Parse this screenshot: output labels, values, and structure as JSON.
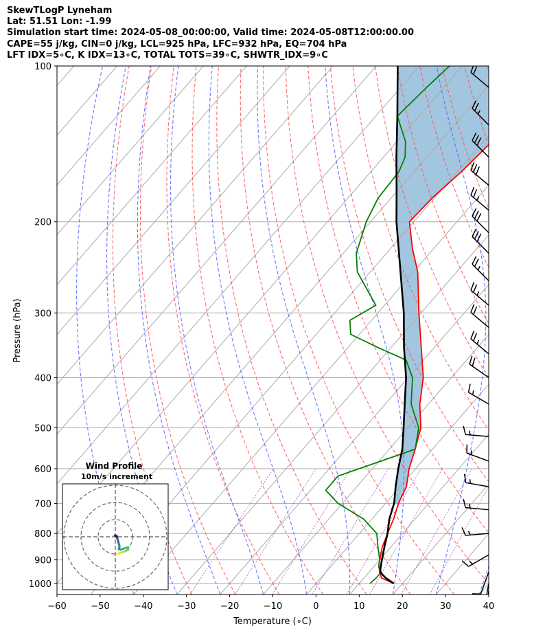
{
  "header": {
    "line1": "SkewTLogP Lyneham",
    "line2": "Lat: 51.51   Lon: -1.99",
    "line3": "Simulation start time: 2024-05-08_00:00:00, Valid time: 2024-05-08T12:00:00.00",
    "line4": "CAPE=55 j/kg, CIN=0 j/kg, LCL=925 hPa, LFC=932 hPa, EQ=704 hPa",
    "line5": "LFT IDX=5∘C, K IDX=13∘C, TOTAL TOTS=39∘C, SHWTR_IDX=9∘C"
  },
  "chart_data": [
    {
      "type": "line",
      "kind": "skew-t log-p",
      "xlabel": "Temperature (∘C)",
      "ylabel": "Pressure (hPa)",
      "xlim": [
        -60,
        40
      ],
      "ylim": [
        1050,
        100
      ],
      "y_scale": "log",
      "x_ticks": [
        "−60",
        "−50",
        "−40",
        "−30",
        "−20",
        "−10",
        "0",
        "10",
        "20",
        "30",
        "40"
      ],
      "y_ticks": [
        "100",
        "200",
        "300",
        "400",
        "500",
        "600",
        "700",
        "800",
        "900",
        "1000"
      ],
      "grid": true,
      "series": [
        {
          "role": "temperature",
          "color": "#ff0000",
          "points": [
            [
              1000,
              18
            ],
            [
              975,
              14
            ],
            [
              950,
              12.5
            ],
            [
              925,
              11
            ],
            [
              900,
              10
            ],
            [
              850,
              8
            ],
            [
              800,
              6.5
            ],
            [
              750,
              5
            ],
            [
              700,
              3
            ],
            [
              650,
              1.5
            ],
            [
              600,
              -1.5
            ],
            [
              550,
              -4
            ],
            [
              500,
              -7
            ],
            [
              450,
              -12
            ],
            [
              400,
              -16.5
            ],
            [
              350,
              -23
            ],
            [
              300,
              -30.5
            ],
            [
              250,
              -39
            ],
            [
              225,
              -45
            ],
            [
              200,
              -51
            ],
            [
              180,
              -50.5
            ],
            [
              160,
              -49
            ],
            [
              140,
              -48
            ],
            [
              125,
              -48
            ],
            [
              110,
              -47
            ],
            [
              100,
              -46
            ]
          ]
        },
        {
          "role": "dewpoint",
          "color": "#008000",
          "points": [
            [
              1000,
              12.5
            ],
            [
              975,
              12.8
            ],
            [
              950,
              12.8
            ],
            [
              925,
              11
            ],
            [
              900,
              10
            ],
            [
              850,
              7
            ],
            [
              800,
              4
            ],
            [
              750,
              -2
            ],
            [
              700,
              -11
            ],
            [
              660,
              -16.5
            ],
            [
              620,
              -16.5
            ],
            [
              550,
              -4
            ],
            [
              500,
              -7.5
            ],
            [
              450,
              -14
            ],
            [
              400,
              -19
            ],
            [
              370,
              -24
            ],
            [
              350,
              -33
            ],
            [
              330,
              -42
            ],
            [
              310,
              -45
            ],
            [
              290,
              -42
            ],
            [
              250,
              -53
            ],
            [
              230,
              -57
            ],
            [
              200,
              -61
            ],
            [
              180,
              -63
            ],
            [
              160,
              -63.5
            ],
            [
              150,
              -65
            ],
            [
              140,
              -68
            ],
            [
              125,
              -75
            ],
            [
              110,
              -74
            ],
            [
              100,
              -73
            ]
          ]
        },
        {
          "role": "parcel",
          "color": "#000000",
          "points": [
            [
              1000,
              18
            ],
            [
              975,
              15
            ],
            [
              950,
              12.5
            ],
            [
              925,
              11.5
            ],
            [
              900,
              10.5
            ],
            [
              850,
              8.5
            ],
            [
              800,
              6.5
            ],
            [
              750,
              4
            ],
            [
              700,
              2
            ],
            [
              650,
              -1
            ],
            [
              600,
              -4
            ],
            [
              550,
              -7
            ],
            [
              500,
              -11
            ],
            [
              450,
              -15.5
            ],
            [
              400,
              -20.5
            ],
            [
              350,
              -27
            ],
            [
              300,
              -34
            ],
            [
              250,
              -43
            ],
            [
              200,
              -54
            ],
            [
              175,
              -60
            ],
            [
              150,
              -67
            ],
            [
              125,
              -75
            ],
            [
              100,
              -85
            ]
          ]
        }
      ],
      "wind_barbs": [
        {
          "p": 100,
          "speed": 20,
          "dir": 310
        },
        {
          "p": 110,
          "speed": 20,
          "dir": 310
        },
        {
          "p": 130,
          "speed": 25,
          "dir": 315
        },
        {
          "p": 150,
          "speed": 30,
          "dir": 315
        },
        {
          "p": 170,
          "speed": 30,
          "dir": 310
        },
        {
          "p": 190,
          "speed": 25,
          "dir": 310
        },
        {
          "p": 210,
          "speed": 30,
          "dir": 315
        },
        {
          "p": 230,
          "speed": 30,
          "dir": 315
        },
        {
          "p": 260,
          "speed": 25,
          "dir": 315
        },
        {
          "p": 290,
          "speed": 25,
          "dir": 310
        },
        {
          "p": 320,
          "speed": 20,
          "dir": 310
        },
        {
          "p": 360,
          "speed": 25,
          "dir": 310
        },
        {
          "p": 400,
          "speed": 20,
          "dir": 305
        },
        {
          "p": 450,
          "speed": 15,
          "dir": 300
        },
        {
          "p": 520,
          "speed": 15,
          "dir": 275
        },
        {
          "p": 580,
          "speed": 15,
          "dir": 290
        },
        {
          "p": 650,
          "speed": 15,
          "dir": 280
        },
        {
          "p": 720,
          "speed": 15,
          "dir": 275
        },
        {
          "p": 800,
          "speed": 15,
          "dir": 265
        },
        {
          "p": 880,
          "speed": 15,
          "dir": 240
        },
        {
          "p": 950,
          "speed": 10,
          "dir": 200
        },
        {
          "p": 1000,
          "speed": 10,
          "dir": 190
        },
        {
          "p": 1030,
          "speed": 10,
          "dir": 185
        }
      ]
    },
    {
      "type": "scatter",
      "kind": "hodograph",
      "title": "Wind Profile",
      "subtitle": "10m/s increment",
      "points": [
        [
          1,
          -10
        ],
        [
          2.5,
          -9.5
        ],
        [
          4,
          -9
        ],
        [
          5.5,
          -8.5
        ],
        [
          6.5,
          -8
        ],
        [
          7.5,
          -7.5
        ],
        [
          7.5,
          -6
        ],
        [
          6,
          -6.5
        ],
        [
          4.5,
          -7
        ],
        [
          3,
          -7.5
        ],
        [
          2,
          -7
        ],
        [
          2.5,
          -5.5
        ],
        [
          2,
          -4
        ],
        [
          1.8,
          -3
        ],
        [
          1.5,
          -2
        ],
        [
          1.2,
          -1
        ],
        [
          0.8,
          -0.3
        ],
        [
          0.3,
          0.3
        ],
        [
          -0.3,
          0.8
        ],
        [
          0.5,
          0.6
        ],
        [
          1,
          0.2
        ]
      ]
    }
  ]
}
